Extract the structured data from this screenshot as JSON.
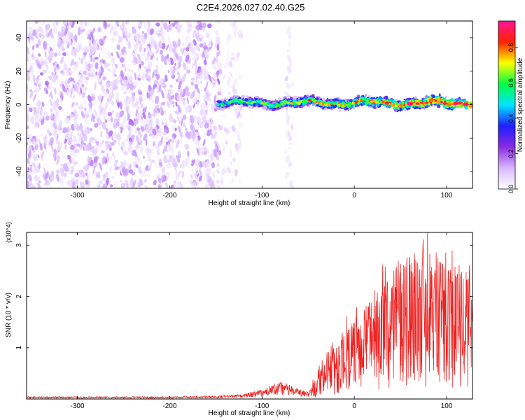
{
  "figure": {
    "title": "C2E4.2026.027.02.40.G25"
  },
  "chart_data": [
    {
      "type": "heatmap",
      "title": "C2E4.2026.027.02.40.G25",
      "xlabel": "Height of straight line (km)",
      "ylabel": "Frequency (Hz)",
      "xlim": [
        -355,
        128
      ],
      "ylim": [
        -50,
        50
      ],
      "x_ticks": [
        -300,
        -200,
        -100,
        0,
        100
      ],
      "y_ticks": [
        -40,
        -20,
        0,
        20,
        40
      ],
      "colorbar": {
        "label": "Normalized spectral amplitude",
        "range": [
          0,
          0.95
        ],
        "ticks": [
          "0.0",
          "0.2",
          "0.4",
          "0.6",
          "0.8"
        ],
        "tick_values": [
          0.0,
          0.2,
          0.4,
          0.6,
          0.8
        ],
        "colormap": [
          "#ffffff",
          "#d8b8ff",
          "#8a2be2",
          "#1e1eff",
          "#00e5ff",
          "#00ff44",
          "#ffff00",
          "#ff2200",
          "#ff1493"
        ]
      },
      "regions": [
        {
          "kind": "broadband-noise",
          "x_range": [
            -355,
            -145
          ],
          "y_range": [
            -50,
            50
          ],
          "level_range": [
            0.03,
            0.18
          ]
        },
        {
          "kind": "sparse-noise",
          "x_range": [
            -145,
            -122
          ],
          "y_range": [
            -50,
            50
          ],
          "level_range": [
            0.02,
            0.12
          ]
        },
        {
          "kind": "narrow-stripe",
          "x_range": [
            -75,
            -67
          ],
          "y_range": [
            -50,
            50
          ],
          "level_range": [
            0.03,
            0.1
          ]
        },
        {
          "kind": "signal-band",
          "x_range": [
            -148,
            128
          ],
          "center_hz": 1,
          "half_width_hz": 4,
          "level_range": [
            0.2,
            0.95
          ]
        }
      ]
    },
    {
      "type": "line",
      "xlabel": "Height of straight line (km)",
      "ylabel": "SNR (10 * v/v)",
      "y_multiplier": "(x10^4)",
      "xlim": [
        -355,
        128
      ],
      "ylim": [
        0,
        32500
      ],
      "x_ticks": [
        -300,
        -200,
        -100,
        0,
        100
      ],
      "y_ticks": [
        10000,
        20000,
        30000
      ],
      "y_tick_labels": [
        "1",
        "2",
        "3"
      ],
      "color": "#ee2222",
      "series": [
        {
          "x": [
            -355,
            -300,
            -250,
            -200,
            -150,
            -120,
            -100,
            -90,
            -80,
            -70,
            -60,
            -50,
            -45,
            -40,
            -30,
            -20,
            -10,
            0,
            10,
            20,
            30,
            40,
            50,
            60,
            70,
            80,
            90,
            100,
            110,
            120,
            128
          ],
          "values": [
            300,
            300,
            300,
            300,
            400,
            600,
            1200,
            1800,
            2200,
            1800,
            1200,
            900,
            1600,
            3200,
            4800,
            6200,
            7200,
            8200,
            9500,
            11000,
            12500,
            13500,
            14500,
            15000,
            15500,
            15500,
            15000,
            14500,
            14000,
            13500,
            14000
          ]
        }
      ]
    }
  ]
}
